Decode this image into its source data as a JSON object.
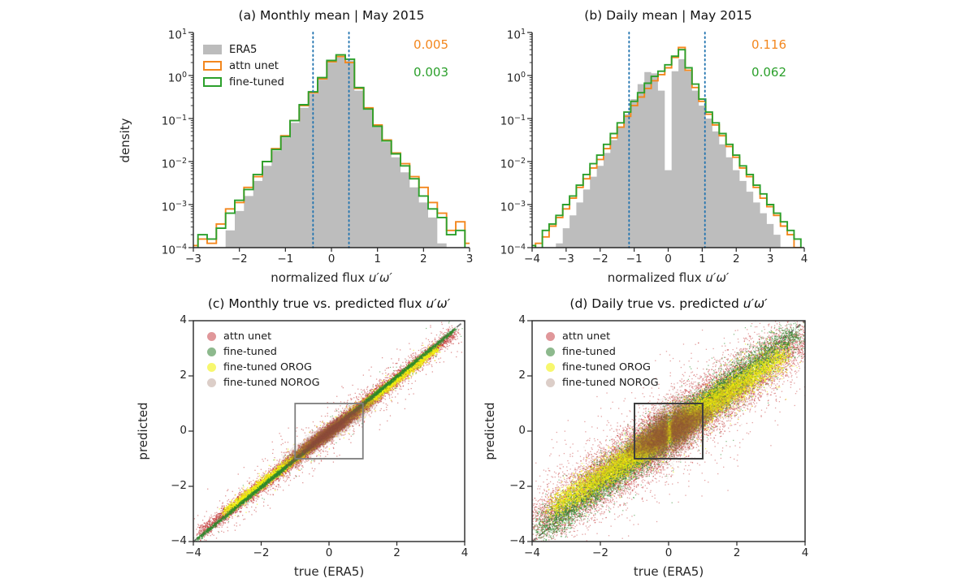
{
  "colors": {
    "era5_fill": "#bdbdbd",
    "attn_unet": "#f3871e",
    "fine_tuned": "#2ca02c",
    "vline_blue": "#2475b0",
    "spine": "#262626",
    "identity_dash": "#7d7d7d"
  },
  "chart_data": [
    {
      "id": "a",
      "type": "bar",
      "subtype": "density-histogram-logy",
      "title": "(a) Monthly mean | May 2015",
      "title_math": "",
      "xlabel": "normalized flux",
      "xlabel_math": "u′ω′",
      "ylabel": "density",
      "xlim": [
        -3,
        3
      ],
      "ylog_lim": [
        -4,
        1
      ],
      "xticks": [
        -3,
        -2,
        -1,
        0,
        1,
        2,
        3
      ],
      "ytick_exponents": [
        1,
        0,
        -1,
        -2,
        -3,
        -4
      ],
      "vlines": {
        "x": [
          -0.4,
          0.38
        ],
        "color": "#2475b0",
        "style": "dotted"
      },
      "annotations": [
        {
          "text": "0.005",
          "color": "#f3871e"
        },
        {
          "text": "0.003",
          "color": "#2ca02c"
        }
      ],
      "legend": [
        {
          "label": "ERA5",
          "color": "#bcbcbc",
          "fill": true
        },
        {
          "label": "attn unet",
          "color": "#f3871e",
          "fill": false
        },
        {
          "label": "fine-tuned",
          "color": "#2ca02c",
          "fill": false
        }
      ],
      "bin_width": 0.2,
      "x": [
        -3,
        -2.8,
        -2.6,
        -2.4,
        -2.2,
        -2,
        -1.8,
        -1.6,
        -1.4,
        -1.2,
        -1,
        -0.8,
        -0.6,
        -0.4,
        -0.2,
        0,
        0.2,
        0.4,
        0.6,
        0.8,
        1,
        1.2,
        1.4,
        1.6,
        1.8,
        2,
        2.2,
        2.4,
        2.6,
        2.8,
        3
      ],
      "series": [
        {
          "name": "ERA5",
          "log10_density": [
            -5,
            -5,
            -5,
            -4.6,
            -3.6,
            -3.15,
            -2.8,
            -2.45,
            -2.1,
            -1.75,
            -1.45,
            -1.1,
            -0.75,
            -0.42,
            -0.1,
            0.3,
            0.42,
            0.35,
            -0.35,
            -0.8,
            -1.2,
            -1.55,
            -1.9,
            -2.25,
            -2.6,
            -2.95,
            -3.3,
            -3.9,
            -5,
            -4.1,
            -5
          ]
        },
        {
          "name": "attn unet",
          "log10_density": [
            -3.95,
            -3.8,
            -3.9,
            -3.45,
            -3.1,
            -2.95,
            -2.6,
            -2.35,
            -2.0,
            -1.7,
            -1.4,
            -1.05,
            -0.7,
            -0.4,
            -0.08,
            0.32,
            0.44,
            0.3,
            -0.3,
            -0.75,
            -1.15,
            -1.5,
            -1.8,
            -2.05,
            -2.35,
            -2.6,
            -2.95,
            -3.2,
            -3.6,
            -3.4,
            -3.9
          ]
        },
        {
          "name": "fine-tuned",
          "log10_density": [
            -4.2,
            -3.7,
            -3.8,
            -3.55,
            -3.2,
            -2.9,
            -2.65,
            -2.3,
            -2.0,
            -1.72,
            -1.42,
            -1.05,
            -0.68,
            -0.38,
            -0.05,
            0.35,
            0.48,
            0.38,
            -0.28,
            -0.78,
            -1.18,
            -1.52,
            -1.82,
            -2.1,
            -2.4,
            -2.8,
            -3.1,
            -3.3,
            -3.7,
            -3.6,
            -4.1
          ]
        }
      ]
    },
    {
      "id": "b",
      "type": "bar",
      "subtype": "density-histogram-logy",
      "title": "(b) Daily mean | May 2015",
      "title_math": "",
      "xlabel": "normalized flux",
      "xlabel_math": "u′ω′",
      "ylabel": "",
      "xlim": [
        -4,
        4
      ],
      "ylog_lim": [
        -4,
        1
      ],
      "xticks": [
        -4,
        -3,
        -2,
        -1,
        0,
        1,
        2,
        3,
        4
      ],
      "ytick_exponents": [
        1,
        0,
        -1,
        -2,
        -3,
        -4
      ],
      "vlines": {
        "x": [
          -1.15,
          1.08
        ],
        "color": "#2475b0",
        "style": "dotted"
      },
      "annotations": [
        {
          "text": "0.116",
          "color": "#f3871e"
        },
        {
          "text": "0.062",
          "color": "#2ca02c"
        }
      ],
      "legend": [],
      "bin_width": 0.2,
      "x": [
        -4,
        -3.8,
        -3.6,
        -3.4,
        -3.2,
        -3,
        -2.8,
        -2.6,
        -2.4,
        -2.2,
        -2,
        -1.8,
        -1.6,
        -1.4,
        -1.2,
        -1,
        -0.8,
        -0.6,
        -0.4,
        -0.2,
        0,
        0.2,
        0.4,
        0.6,
        0.8,
        1,
        1.2,
        1.4,
        1.6,
        1.8,
        2,
        2.2,
        2.4,
        2.6,
        2.8,
        3,
        3.2,
        3.4,
        3.6,
        3.8,
        4
      ],
      "series": [
        {
          "name": "ERA5",
          "log10_density": [
            -5,
            -5,
            -5,
            -4.3,
            -3.9,
            -3.55,
            -3.25,
            -2.95,
            -2.65,
            -2.35,
            -2.1,
            -1.8,
            -1.5,
            -1.2,
            -0.9,
            -0.55,
            -0.2,
            0.08,
            0.05,
            -0.35,
            -2.2,
            0.1,
            0.38,
            0.1,
            -0.35,
            -0.7,
            -1.0,
            -1.3,
            -1.6,
            -1.9,
            -2.2,
            -2.45,
            -2.7,
            -2.95,
            -3.2,
            -3.45,
            -3.7,
            -4.1,
            -5,
            -5,
            -5
          ]
        },
        {
          "name": "attn unet",
          "log10_density": [
            -4.1,
            -3.9,
            -3.75,
            -3.5,
            -3.3,
            -3.1,
            -2.85,
            -2.6,
            -2.4,
            -2.15,
            -1.95,
            -1.7,
            -1.45,
            -1.2,
            -0.95,
            -0.7,
            -0.5,
            -0.3,
            -0.12,
            0.02,
            0.18,
            0.42,
            0.65,
            0.12,
            -0.28,
            -0.6,
            -0.9,
            -1.15,
            -1.4,
            -1.65,
            -1.9,
            -2.15,
            -2.35,
            -2.6,
            -2.85,
            -3.05,
            -3.25,
            -3.5,
            -3.7,
            -4.0,
            -4.2
          ]
        },
        {
          "name": "fine-tuned",
          "log10_density": [
            -3.95,
            -4.05,
            -3.6,
            -3.45,
            -3.25,
            -3.0,
            -2.8,
            -2.55,
            -2.3,
            -2.05,
            -1.85,
            -1.6,
            -1.35,
            -1.1,
            -0.85,
            -0.6,
            -0.4,
            -0.18,
            -0.02,
            0.1,
            0.25,
            0.45,
            0.6,
            0.18,
            -0.2,
            -0.55,
            -0.85,
            -1.1,
            -1.35,
            -1.6,
            -1.85,
            -2.1,
            -2.3,
            -2.55,
            -2.75,
            -3.0,
            -3.2,
            -3.4,
            -3.6,
            -3.8,
            -4.05
          ]
        }
      ]
    },
    {
      "id": "c",
      "type": "scatter",
      "title": "(c) Monthly true vs. predicted flux ",
      "title_math": "u′ω′",
      "xlabel": "true (ERA5)",
      "ylabel": "predicted",
      "xlim": [
        -4,
        4
      ],
      "ylim": [
        -4,
        4
      ],
      "xticks": [
        -4,
        -2,
        0,
        2,
        4
      ],
      "yticks": [
        4,
        2,
        0,
        -2,
        -4
      ],
      "identity_line": true,
      "highlight_box": {
        "x": [
          -1,
          1
        ],
        "y": [
          -1,
          1
        ],
        "color": "#7e7e7e",
        "lw": 1.8
      },
      "draw_order": [
        0,
        2,
        1,
        3
      ],
      "series": [
        {
          "name": "attn unet",
          "color": "#c22f2f",
          "legend_color": "#e0979a",
          "shape": "band",
          "n": 9000,
          "t_min": -3.8,
          "t_max": 3.7,
          "bias_sigma": 1.7,
          "sigma": 0.12,
          "yscale": 0.97,
          "outlier_frac": 0.1,
          "outlier_sigma": 0.38,
          "alpha": 0.5,
          "size": 1.3
        },
        {
          "name": "fine-tuned",
          "color": "#2e8b2e",
          "legend_color": "#8db98d",
          "shape": "band",
          "n": 6000,
          "t_min": -3.9,
          "t_max": 3.7,
          "bias_sigma": 1.8,
          "sigma": 0.035,
          "yscale": 1.0,
          "outlier_frac": 0.03,
          "outlier_sigma": 0.25,
          "alpha": 0.6,
          "size": 1.2
        },
        {
          "name": "fine-tuned OROG",
          "color": "#f0f00c",
          "legend_color": "#f7f76e",
          "shape": "band",
          "n": 8000,
          "t_min": -3.1,
          "t_max": 3.2,
          "bias_sigma": 1.4,
          "sigma": 0.075,
          "yscale": 0.95,
          "outlier_frac": 0.05,
          "outlier_sigma": 0.2,
          "alpha": 0.65,
          "size": 1.3
        },
        {
          "name": "fine-tuned NOROG",
          "color": "#93543f",
          "legend_color": "#dccec8",
          "shape": "cigar",
          "n": 10000,
          "t_sigma": 0.55,
          "t_clip": 1.35,
          "sigma": 0.11,
          "yscale": 0.9,
          "alpha": 0.12,
          "size": 1.7
        }
      ]
    },
    {
      "id": "d",
      "type": "scatter",
      "title": "(d) Daily true vs. predicted ",
      "title_math": "u′ω′",
      "xlabel": "true (ERA5)",
      "ylabel": "predicted",
      "xlim": [
        -4,
        4
      ],
      "ylim": [
        -4,
        4
      ],
      "xticks": [
        -4,
        -2,
        0,
        2,
        4
      ],
      "yticks": [
        4,
        2,
        0,
        -2,
        -4
      ],
      "identity_line": true,
      "highlight_box": {
        "x": [
          -1,
          1
        ],
        "y": [
          -1,
          1
        ],
        "color": "#3e3e3e",
        "lw": 2
      },
      "draw_order": [
        0,
        1,
        2,
        3
      ],
      "series": [
        {
          "name": "attn unet",
          "color": "#c22f2f",
          "legend_color": "#e0979a",
          "shape": "band",
          "n": 14000,
          "t_min": -3.9,
          "t_max": 3.9,
          "bias_sigma": 1.9,
          "sigma": 0.45,
          "yscale": 0.88,
          "outlier_frac": 0.1,
          "outlier_sigma": 0.95,
          "alpha": 0.45,
          "size": 1.3
        },
        {
          "name": "fine-tuned",
          "color": "#2e8b2e",
          "legend_color": "#8db98d",
          "shape": "band",
          "n": 10000,
          "t_min": -3.8,
          "t_max": 3.8,
          "bias_sigma": 1.8,
          "sigma": 0.28,
          "yscale": 0.95,
          "outlier_frac": 0.05,
          "outlier_sigma": 0.6,
          "alpha": 0.55,
          "size": 1.3
        },
        {
          "name": "fine-tuned OROG",
          "color": "#f0f00c",
          "legend_color": "#f7f76e",
          "shape": "band",
          "n": 10000,
          "t_min": -3.4,
          "t_max": 3.4,
          "bias_sigma": 1.5,
          "sigma": 0.22,
          "yscale": 0.82,
          "outlier_frac": 0.08,
          "outlier_sigma": 0.45,
          "alpha": 0.6,
          "size": 1.3
        },
        {
          "name": "fine-tuned NOROG",
          "color": "#93543f",
          "legend_color": "#dccec8",
          "shape": "bowtie",
          "n": 16000,
          "alpha": 0.1,
          "size": 1.8
        }
      ]
    }
  ]
}
